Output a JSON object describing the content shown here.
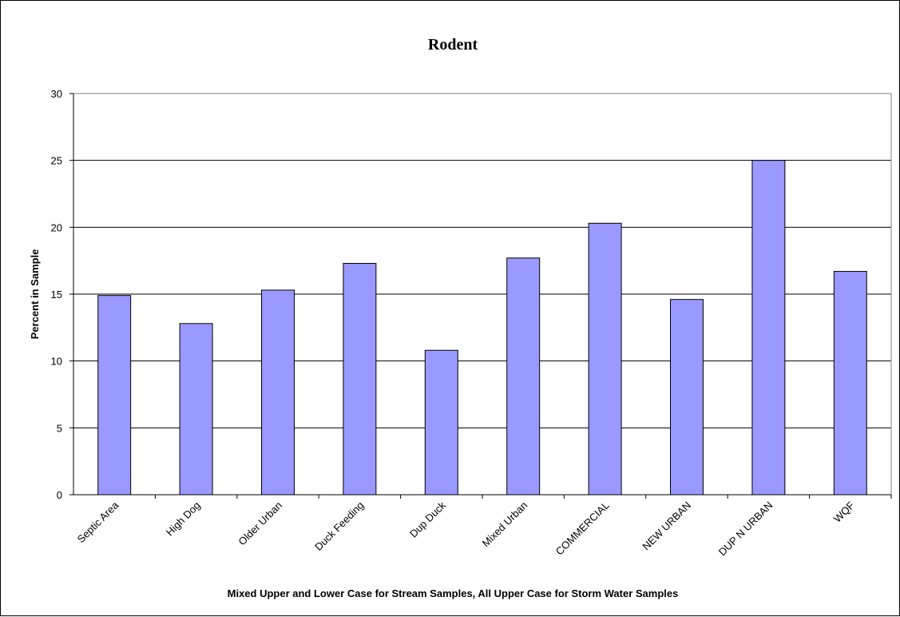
{
  "chart_data": {
    "type": "bar",
    "title": "Rodent",
    "xlabel": "Mixed Upper and Lower Case for Stream Samples, All Upper Case for Storm Water Samples",
    "ylabel": "Percent in Sample",
    "ylim": [
      0,
      30
    ],
    "yticks": [
      "0",
      "5",
      "10",
      "15",
      "20",
      "25",
      "30"
    ],
    "grid": true,
    "legend": "none",
    "categories": [
      "Septic Area",
      "High Dog",
      "Older Urban",
      "Duck Feeding",
      "Dup Duck",
      "Mixed Urban",
      "COMMERCIAL",
      "NEW URBAN",
      "DUP N URBAN",
      "WQF"
    ],
    "values": [
      14.9,
      12.8,
      15.3,
      17.3,
      10.8,
      17.7,
      20.3,
      14.6,
      25.0,
      16.7
    ],
    "bar_color": "#9999ff",
    "bar_edge_color": "#000000"
  }
}
